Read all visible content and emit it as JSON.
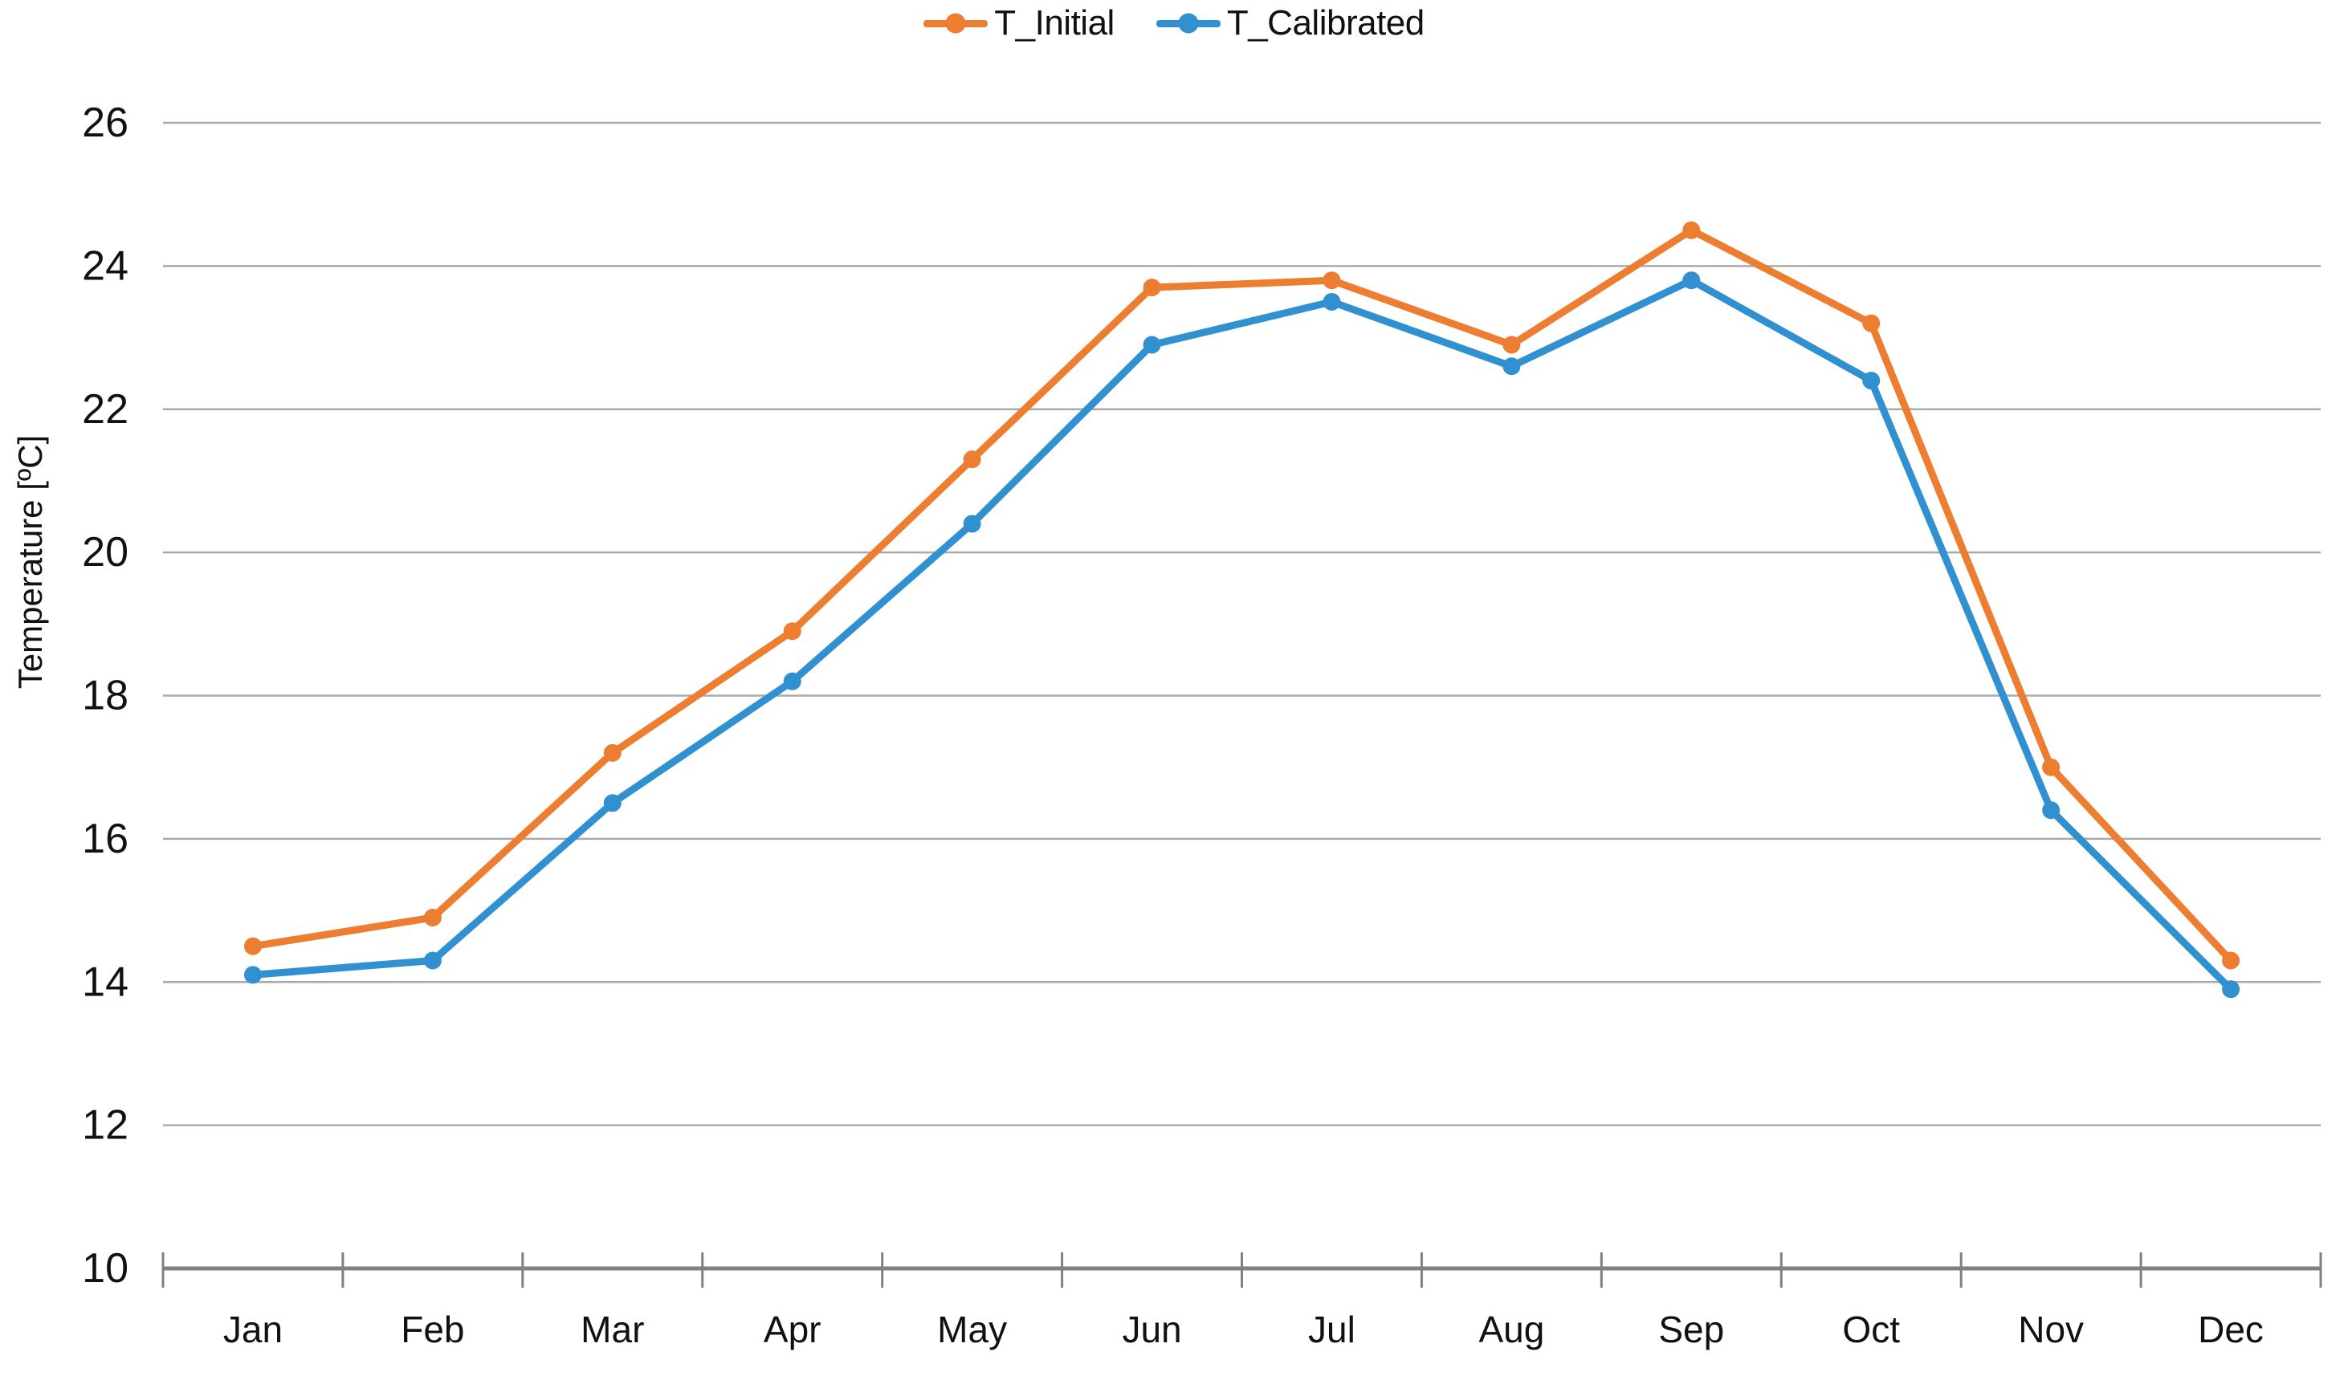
{
  "chart_data": {
    "type": "line",
    "title": "",
    "categories": [
      "Jan",
      "Feb",
      "Mar",
      "Apr",
      "May",
      "Jun",
      "Jul",
      "Aug",
      "Sep",
      "Oct",
      "Nov",
      "Dec"
    ],
    "series": [
      {
        "name": "T_Initial",
        "color": "#ED7D31",
        "values": [
          14.5,
          14.9,
          17.2,
          18.9,
          21.3,
          23.7,
          23.8,
          22.9,
          24.5,
          23.2,
          17.0,
          14.3
        ]
      },
      {
        "name": "T_Calibrated",
        "color": "#3191D0",
        "values": [
          14.1,
          14.3,
          16.5,
          18.2,
          20.4,
          22.9,
          23.5,
          22.6,
          23.8,
          22.4,
          16.4,
          13.9
        ]
      }
    ],
    "xlabel": "",
    "ylabel": "Temperature [ºC]",
    "ylim": [
      10,
      26
    ],
    "ytick_step": 2,
    "grid": "horizontal",
    "legend_position": "top-center",
    "marker": "circle",
    "colors": {
      "gridline": "#AAAAAA",
      "axis": "#808080",
      "text": "#111111",
      "background": "#FFFFFF"
    }
  }
}
